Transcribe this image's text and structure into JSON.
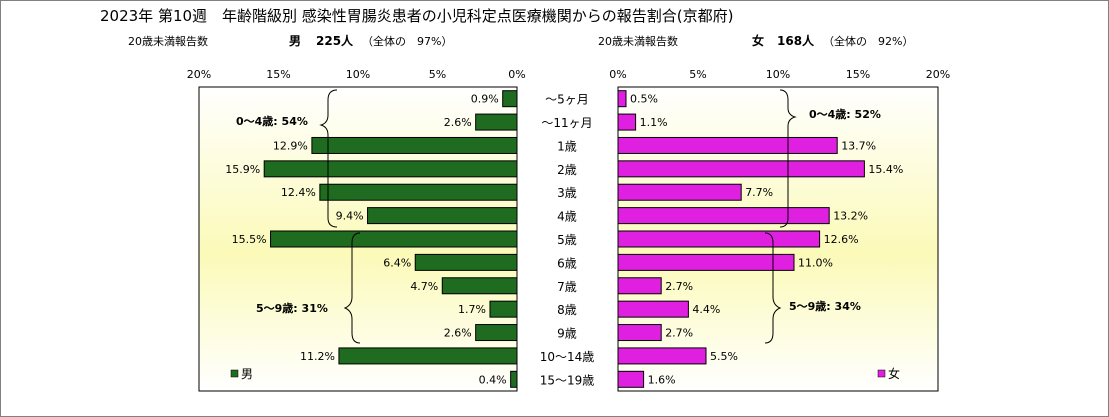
{
  "chart_data": {
    "type": "bar",
    "title": "2023年 第10週　年齢階級別 感染性胃腸炎患者の小児科定点医療機関からの報告割合(京都府)",
    "male_info": {
      "count_label": "20歳未満報告数",
      "name": "男",
      "count": "225人",
      "total_share": "（全体の　97%）"
    },
    "female_info": {
      "count_label": "20歳未満報告数",
      "name": "女",
      "count": "168人",
      "total_share": "（全体の　92%）"
    },
    "categories": [
      "～5ヶ月",
      "～11ヶ月",
      "1歳",
      "2歳",
      "3歳",
      "4歳",
      "5歳",
      "6歳",
      "7歳",
      "8歳",
      "9歳",
      "10～14歳",
      "15～19歳"
    ],
    "series": [
      {
        "name": "男",
        "color": "#1f6b1f",
        "values": [
          0.9,
          2.6,
          12.9,
          15.9,
          12.4,
          9.4,
          15.5,
          6.4,
          4.7,
          1.7,
          2.6,
          11.2,
          0.4
        ],
        "labels": [
          "0.9%",
          "2.6%",
          "12.9%",
          "15.9%",
          "12.4%",
          "9.4%",
          "15.5%",
          "6.4%",
          "4.7%",
          "1.7%",
          "2.6%",
          "11.2%",
          "0.4%"
        ]
      },
      {
        "name": "女",
        "color": "#e020e0",
        "values": [
          0.5,
          1.1,
          13.7,
          15.4,
          7.7,
          13.2,
          12.6,
          11.0,
          2.7,
          4.4,
          2.7,
          5.5,
          1.6
        ],
        "labels": [
          "0.5%",
          "1.1%",
          "13.7%",
          "15.4%",
          "7.7%",
          "13.2%",
          "12.6%",
          "11.0%",
          "2.7%",
          "4.4%",
          "2.7%",
          "5.5%",
          "1.6%"
        ]
      }
    ],
    "xlim": [
      0,
      20
    ],
    "male_ticks": [
      "20%",
      "15%",
      "10%",
      "5%",
      "0%"
    ],
    "female_ticks": [
      "0%",
      "5%",
      "10%",
      "15%",
      "20%"
    ],
    "male_tick_values": [
      20,
      15,
      10,
      5,
      0
    ],
    "female_tick_values": [
      0,
      5,
      10,
      15,
      20
    ],
    "annotations": {
      "male_0_4": "0～4歳: 54%",
      "male_5_9": "5～9歳: 31%",
      "female_0_4": "0～4歳: 52%",
      "female_5_9": "5～9歳: 34%"
    },
    "legend_male": "男",
    "legend_female": "女"
  }
}
